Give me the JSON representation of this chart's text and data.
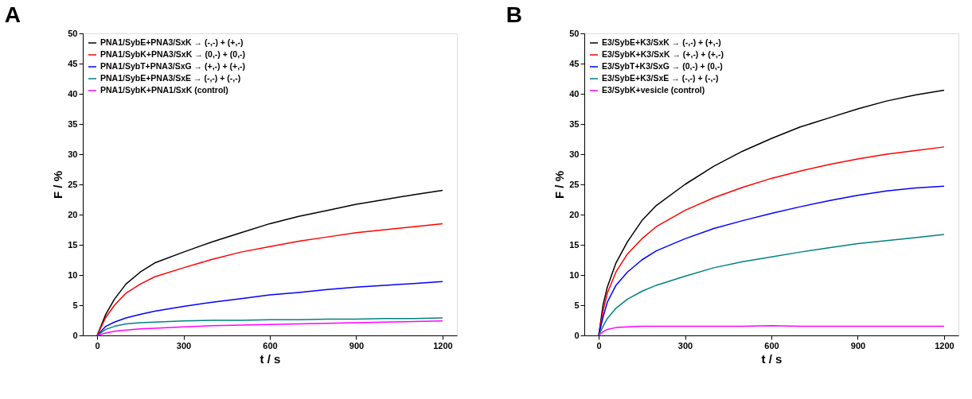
{
  "chart_data": [
    {
      "type": "line",
      "title": "A",
      "xlabel": "t / s",
      "ylabel": "F / %",
      "x": [
        0,
        30,
        60,
        100,
        150,
        200,
        300,
        400,
        500,
        600,
        700,
        800,
        900,
        1000,
        1100,
        1200
      ],
      "xlim": [
        -50,
        1250
      ],
      "xticks": [
        0,
        300,
        600,
        900,
        1200
      ],
      "ylim": [
        0,
        50
      ],
      "yticks": [
        0,
        5,
        10,
        15,
        20,
        25,
        30,
        35,
        40,
        45,
        50
      ],
      "grid": false,
      "legend": "top left",
      "series": [
        {
          "name": "PNA1/SybE+PNA3/SxK → (-,-) + (+,-)",
          "color": "#000000",
          "values": [
            0,
            3.5,
            6,
            8.5,
            10.5,
            12,
            13.8,
            15.5,
            17,
            18.5,
            19.7,
            20.7,
            21.7,
            22.5,
            23.3,
            24
          ]
        },
        {
          "name": "PNA1/SybK+PNA3/SxK → (0,-) + (0,-)",
          "color": "#ff0000",
          "values": [
            0,
            3,
            5,
            7,
            8.5,
            9.7,
            11.2,
            12.6,
            13.8,
            14.7,
            15.6,
            16.3,
            17,
            17.5,
            18,
            18.5
          ]
        },
        {
          "name": "PNA1/SybT+PNA3/SxG → (+,-) + (+,-)",
          "color": "#0000ff",
          "values": [
            0,
            1.5,
            2.2,
            2.9,
            3.5,
            4,
            4.8,
            5.5,
            6.1,
            6.7,
            7.1,
            7.6,
            8,
            8.3,
            8.6,
            8.9
          ]
        },
        {
          "name": "PNA1/SybE+PNA3/SxE → (-,-) + (-,-)",
          "color": "#008080",
          "values": [
            0,
            1,
            1.5,
            1.9,
            2.1,
            2.2,
            2.4,
            2.5,
            2.5,
            2.6,
            2.6,
            2.7,
            2.7,
            2.8,
            2.8,
            2.9
          ]
        },
        {
          "name": "PNA1/SybK+PNA1/SxK (control)",
          "color": "#ff00ff",
          "values": [
            0,
            0.4,
            0.7,
            0.9,
            1.1,
            1.2,
            1.4,
            1.6,
            1.7,
            1.8,
            1.9,
            2.0,
            2.1,
            2.2,
            2.3,
            2.4
          ]
        }
      ]
    },
    {
      "type": "line",
      "title": "B",
      "xlabel": "t / s",
      "ylabel": "F / %",
      "x": [
        0,
        15,
        30,
        60,
        100,
        150,
        200,
        300,
        400,
        500,
        600,
        700,
        800,
        900,
        1000,
        1100,
        1200
      ],
      "xlim": [
        -50,
        1250
      ],
      "xticks": [
        0,
        300,
        600,
        900,
        1200
      ],
      "ylim": [
        0,
        50
      ],
      "yticks": [
        0,
        5,
        10,
        15,
        20,
        25,
        30,
        35,
        40,
        45,
        50
      ],
      "grid": false,
      "legend": "top left",
      "series": [
        {
          "name": "E3/SybE+K3/SxK → (-,-) + (+,-)",
          "color": "#000000",
          "values": [
            0,
            5,
            8,
            12,
            15.5,
            19,
            21.5,
            25,
            28,
            30.5,
            32.6,
            34.5,
            36,
            37.5,
            38.8,
            39.8,
            40.6
          ]
        },
        {
          "name": "E3/SybK+K3/SxK → (+,-) + (+,-)",
          "color": "#ff0000",
          "values": [
            0,
            4,
            7,
            10.5,
            13.5,
            16,
            18,
            20.7,
            22.8,
            24.5,
            26,
            27.2,
            28.3,
            29.2,
            30,
            30.6,
            31.2
          ]
        },
        {
          "name": "E3/SybT+K3/SxG → (0,-) + (0,-)",
          "color": "#0000ff",
          "values": [
            0,
            3,
            5.5,
            8.3,
            10.5,
            12.5,
            14,
            16,
            17.7,
            19,
            20.2,
            21.3,
            22.3,
            23.2,
            23.9,
            24.4,
            24.7
          ]
        },
        {
          "name": "E3/SybE+K3/SxE → (-,-) + (-,-)",
          "color": "#008080",
          "values": [
            0,
            1.5,
            2.8,
            4.5,
            6,
            7.3,
            8.3,
            9.8,
            11.2,
            12.2,
            13,
            13.8,
            14.5,
            15.2,
            15.7,
            16.2,
            16.7
          ]
        },
        {
          "name": "E3/SybK+vesicle (control)",
          "color": "#ff00ff",
          "values": [
            0,
            0.6,
            1,
            1.3,
            1.4,
            1.5,
            1.5,
            1.5,
            1.5,
            1.5,
            1.6,
            1.5,
            1.5,
            1.5,
            1.5,
            1.5,
            1.5
          ]
        }
      ]
    }
  ]
}
